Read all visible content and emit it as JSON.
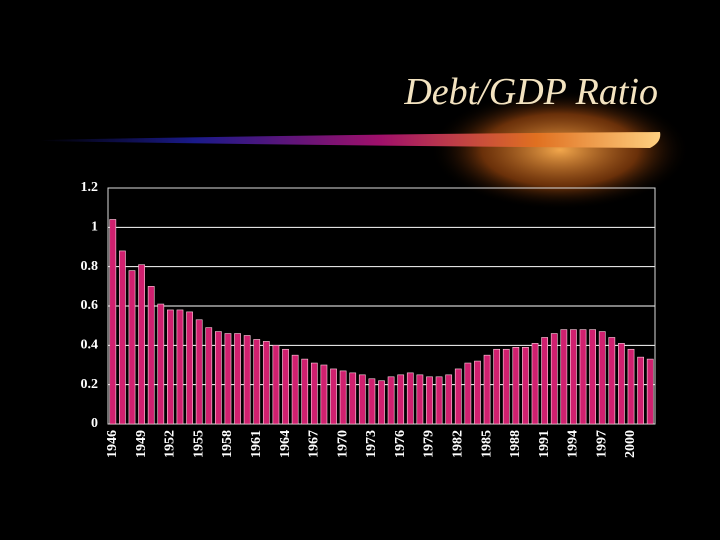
{
  "chart_data": {
    "type": "bar",
    "title": "Debt/GDP Ratio",
    "categories": [
      "1946",
      null,
      null,
      "1949",
      null,
      null,
      "1952",
      null,
      null,
      "1955",
      null,
      null,
      "1958",
      null,
      null,
      "1961",
      null,
      null,
      "1964",
      null,
      null,
      "1967",
      null,
      null,
      "1970",
      null,
      null,
      "1973",
      null,
      null,
      "1976",
      null,
      null,
      "1979",
      null,
      null,
      "1982",
      null,
      null,
      "1985",
      null,
      null,
      "1988",
      null,
      null,
      "1991",
      null,
      null,
      "1994",
      null,
      null,
      "1997",
      null,
      null,
      "2000",
      null,
      null
    ],
    "values": [
      1.04,
      0.88,
      0.78,
      0.81,
      0.7,
      0.61,
      0.58,
      0.58,
      0.57,
      0.53,
      0.49,
      0.47,
      0.46,
      0.46,
      0.45,
      0.43,
      0.42,
      0.4,
      0.38,
      0.35,
      0.33,
      0.31,
      0.3,
      0.28,
      0.27,
      0.26,
      0.25,
      0.23,
      0.22,
      0.24,
      0.25,
      0.26,
      0.25,
      0.24,
      0.24,
      0.25,
      0.28,
      0.31,
      0.32,
      0.35,
      0.38,
      0.38,
      0.39,
      0.39,
      0.41,
      0.44,
      0.46,
      0.48,
      0.48,
      0.48,
      0.48,
      0.47,
      0.44,
      0.41,
      0.38,
      0.34,
      0.33
    ],
    "color": "#d0206f",
    "ylim": [
      0,
      1.2
    ],
    "yticks": [
      0,
      0.2,
      0.4,
      0.6,
      0.8,
      1,
      1.2
    ],
    "grid": true
  }
}
